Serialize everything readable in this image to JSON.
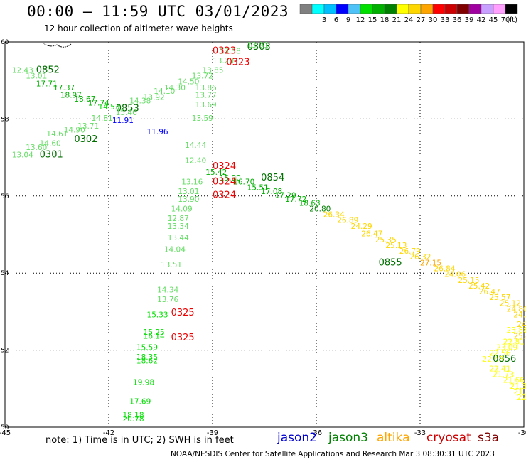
{
  "header": {
    "title": "00:00 – 11:59 UTC 03/01/2023",
    "subtitle": "12 hour collection of altimeter wave heights"
  },
  "legend": {
    "unit": "(ft)",
    "bins": [
      {
        "label": "",
        "color": "#808080"
      },
      {
        "label": "3",
        "color": "#00ffff"
      },
      {
        "label": "6",
        "color": "#00bfff"
      },
      {
        "label": "9",
        "color": "#0000ff"
      },
      {
        "label": "12",
        "color": "#4fc3f7"
      },
      {
        "label": "15",
        "color": "#00e000"
      },
      {
        "label": "18",
        "color": "#00b000"
      },
      {
        "label": "21",
        "color": "#008000"
      },
      {
        "label": "24",
        "color": "#ffff00"
      },
      {
        "label": "27",
        "color": "#ffd700"
      },
      {
        "label": "30",
        "color": "#ffa500"
      },
      {
        "label": "33",
        "color": "#ff0000"
      },
      {
        "label": "36",
        "color": "#cc0000"
      },
      {
        "label": "39",
        "color": "#800000"
      },
      {
        "label": "42",
        "color": "#a000a0"
      },
      {
        "label": "45",
        "color": "#c8a0ff"
      },
      {
        "label": "70",
        "color": "#ffa0ff"
      },
      {
        "label": "",
        "color": "#000000"
      }
    ]
  },
  "axes": {
    "lon_ticks": [
      "-45",
      "-42",
      "-39",
      "-36",
      "-33",
      "-30"
    ],
    "lat_ticks": [
      "50",
      "52",
      "54",
      "56",
      "58",
      "60"
    ]
  },
  "tracks": [
    {
      "color": "#00c000",
      "times": [
        {
          "label": "0852",
          "lon": -44.1,
          "lat": 59.2
        },
        {
          "label": "0853",
          "lon": -41.8,
          "lat": 58.2
        },
        {
          "label": "0854",
          "lon": -37.6,
          "lat": 56.4
        },
        {
          "label": "0855",
          "lon": -34.2,
          "lat": 54.2
        },
        {
          "label": "0856",
          "lon": -30.9,
          "lat": 51.7
        }
      ],
      "values": [
        {
          "v": "12.43",
          "lon": -44.8,
          "lat": 59.2,
          "c": "#66dd66"
        },
        {
          "v": "13.01",
          "lon": -44.4,
          "lat": 59.05,
          "c": "#66dd66"
        },
        {
          "v": "17.71",
          "lon": -44.1,
          "lat": 58.85,
          "c": "#00b000"
        },
        {
          "v": "17.37",
          "lon": -43.6,
          "lat": 58.75,
          "c": "#00b000"
        },
        {
          "v": "18.97",
          "lon": -43.4,
          "lat": 58.55,
          "c": "#00b000"
        },
        {
          "v": "18.67",
          "lon": -43.0,
          "lat": 58.45,
          "c": "#00b000"
        },
        {
          "v": "17.74",
          "lon": -42.6,
          "lat": 58.35,
          "c": "#00b000"
        },
        {
          "v": "14.53",
          "lon": -42.3,
          "lat": 58.25,
          "c": "#00e000"
        },
        {
          "v": "11.91",
          "lon": -41.9,
          "lat": 57.9,
          "c": "#0000ff"
        },
        {
          "v": "11.96",
          "lon": -40.9,
          "lat": 57.6,
          "c": "#0000ff"
        },
        {
          "v": "15.42",
          "lon": -39.2,
          "lat": 56.55,
          "c": "#00b000"
        },
        {
          "v": "15.90",
          "lon": -38.8,
          "lat": 56.4,
          "c": "#00b000"
        },
        {
          "v": "16.70",
          "lon": -38.4,
          "lat": 56.3,
          "c": "#00b000"
        },
        {
          "v": "15.51",
          "lon": -38.0,
          "lat": 56.15,
          "c": "#00b000"
        },
        {
          "v": "17.08",
          "lon": -37.6,
          "lat": 56.05,
          "c": "#00b000"
        },
        {
          "v": "17.29",
          "lon": -37.2,
          "lat": 55.95,
          "c": "#00b000"
        },
        {
          "v": "17.72",
          "lon": -36.9,
          "lat": 55.85,
          "c": "#00b000"
        },
        {
          "v": "18.63",
          "lon": -36.5,
          "lat": 55.75,
          "c": "#00b000"
        },
        {
          "v": "20.80",
          "lon": -36.2,
          "lat": 55.6,
          "c": "#008000"
        },
        {
          "v": "26.34",
          "lon": -35.8,
          "lat": 55.45,
          "c": "#ffd700"
        },
        {
          "v": "26.89",
          "lon": -35.4,
          "lat": 55.3,
          "c": "#ffd700"
        },
        {
          "v": "24.29",
          "lon": -35.0,
          "lat": 55.15,
          "c": "#ffd700"
        },
        {
          "v": "26.47",
          "lon": -34.7,
          "lat": 54.95,
          "c": "#ffd700"
        },
        {
          "v": "25.35",
          "lon": -34.3,
          "lat": 54.8,
          "c": "#ffd700"
        },
        {
          "v": "25.13",
          "lon": -34.0,
          "lat": 54.65,
          "c": "#ffd700"
        },
        {
          "v": "26.79",
          "lon": -33.6,
          "lat": 54.5,
          "c": "#ffd700"
        },
        {
          "v": "26.32",
          "lon": -33.3,
          "lat": 54.35,
          "c": "#ffd700"
        },
        {
          "v": "27.15",
          "lon": -33.0,
          "lat": 54.2,
          "c": "#ffa500"
        },
        {
          "v": "26.84",
          "lon": -32.6,
          "lat": 54.05,
          "c": "#ffd700"
        },
        {
          "v": "24.06",
          "lon": -32.3,
          "lat": 53.9,
          "c": "#ffd700"
        },
        {
          "v": "25.15",
          "lon": -31.9,
          "lat": 53.75,
          "c": "#ffd700"
        },
        {
          "v": "25.42",
          "lon": -31.6,
          "lat": 53.6,
          "c": "#ffd700"
        },
        {
          "v": "26.47",
          "lon": -31.3,
          "lat": 53.45,
          "c": "#ffd700"
        },
        {
          "v": "25.57",
          "lon": -31.0,
          "lat": 53.3,
          "c": "#ffd700"
        },
        {
          "v": "25.12",
          "lon": -30.7,
          "lat": 53.15,
          "c": "#ffd700"
        },
        {
          "v": "24.80",
          "lon": -30.5,
          "lat": 53.0,
          "c": "#ffd700"
        },
        {
          "v": "24.55",
          "lon": -30.3,
          "lat": 52.85,
          "c": "#ffd700"
        },
        {
          "v": "24.77",
          "lon": -30.2,
          "lat": 52.6,
          "c": "#ffd700"
        },
        {
          "v": "23.88",
          "lon": -30.5,
          "lat": 52.45,
          "c": "#ffff00"
        },
        {
          "v": "25.41",
          "lon": -30.3,
          "lat": 52.3,
          "c": "#ffd700"
        },
        {
          "v": "22.81",
          "lon": -30.6,
          "lat": 52.15,
          "c": "#ffff00"
        },
        {
          "v": "23.09",
          "lon": -30.8,
          "lat": 52.0,
          "c": "#ffff00"
        },
        {
          "v": "22.56",
          "lon": -31.0,
          "lat": 51.85,
          "c": "#ffff00"
        },
        {
          "v": "22.43",
          "lon": -31.2,
          "lat": 51.7,
          "c": "#ffff00"
        },
        {
          "v": "22.41",
          "lon": -31.0,
          "lat": 51.45,
          "c": "#ffff00"
        },
        {
          "v": "21.73",
          "lon": -30.9,
          "lat": 51.3,
          "c": "#ffff00"
        },
        {
          "v": "21.66",
          "lon": -30.6,
          "lat": 51.15,
          "c": "#ffff00"
        },
        {
          "v": "21.37",
          "lon": -30.4,
          "lat": 51.0,
          "c": "#ffff00"
        },
        {
          "v": "21.85",
          "lon": -30.3,
          "lat": 50.85,
          "c": "#ffff00"
        },
        {
          "v": "22.09",
          "lon": -30.2,
          "lat": 50.7,
          "c": "#ffff00"
        }
      ]
    },
    {
      "color": "#00c000",
      "times": [
        {
          "label": "0301",
          "lon": -44.0,
          "lat": 57.0
        },
        {
          "label": "0302",
          "lon": -43.0,
          "lat": 57.4
        },
        {
          "label": "0303",
          "lon": -38.0,
          "lat": 59.8
        }
      ],
      "values": [
        {
          "v": "13.04",
          "lon": -44.8,
          "lat": 57.0,
          "c": "#66dd66"
        },
        {
          "v": "13.60",
          "lon": -44.4,
          "lat": 57.2,
          "c": "#66dd66"
        },
        {
          "v": "14.60",
          "lon": -44.0,
          "lat": 57.3,
          "c": "#66dd66"
        },
        {
          "v": "14.61",
          "lon": -43.8,
          "lat": 57.55,
          "c": "#66dd66"
        },
        {
          "v": "14.90",
          "lon": -43.3,
          "lat": 57.65,
          "c": "#66dd66"
        },
        {
          "v": "13.71",
          "lon": -42.9,
          "lat": 57.75,
          "c": "#66dd66"
        },
        {
          "v": "14.81",
          "lon": -42.5,
          "lat": 57.95,
          "c": "#66dd66"
        },
        {
          "v": "15.46",
          "lon": -41.8,
          "lat": 58.1,
          "c": "#66dd66"
        },
        {
          "v": "14.38",
          "lon": -41.4,
          "lat": 58.4,
          "c": "#66dd66"
        },
        {
          "v": "13.92",
          "lon": -41.0,
          "lat": 58.5,
          "c": "#66dd66"
        },
        {
          "v": "14.10",
          "lon": -40.7,
          "lat": 58.65,
          "c": "#66dd66"
        },
        {
          "v": "14.30",
          "lon": -40.4,
          "lat": 58.75,
          "c": "#66dd66"
        },
        {
          "v": "14.50",
          "lon": -40.0,
          "lat": 58.9,
          "c": "#66dd66"
        },
        {
          "v": "13.72",
          "lon": -39.6,
          "lat": 59.05,
          "c": "#66dd66"
        },
        {
          "v": "13.85",
          "lon": -39.3,
          "lat": 59.2,
          "c": "#66dd66"
        },
        {
          "v": "13.20",
          "lon": -39.0,
          "lat": 59.45,
          "c": "#66dd66"
        },
        {
          "v": "13.38",
          "lon": -38.8,
          "lat": 59.7,
          "c": "#66dd66"
        },
        {
          "v": "13.91",
          "lon": -38.0,
          "lat": 59.85,
          "c": "#66dd66"
        }
      ]
    },
    {
      "color": "#ff0000",
      "times": [
        {
          "label": "0323",
          "lon": -38.6,
          "lat": 59.4
        },
        {
          "label": "0324",
          "lon": -39.0,
          "lat": 56.7
        },
        {
          "label": "0325",
          "lon": -40.2,
          "lat": 52.9
        }
      ],
      "values": [
        {
          "v": "13.86",
          "lon": -39.5,
          "lat": 58.75,
          "c": "#66dd66"
        },
        {
          "v": "13.77",
          "lon": -39.5,
          "lat": 58.55,
          "c": "#66dd66"
        },
        {
          "v": "13.69",
          "lon": -39.5,
          "lat": 58.3,
          "c": "#66dd66"
        },
        {
          "v": "13.59",
          "lon": -39.6,
          "lat": 57.95,
          "c": "#66dd66"
        },
        {
          "v": "14.44",
          "lon": -39.8,
          "lat": 57.25,
          "c": "#66dd66"
        },
        {
          "v": "12.40",
          "lon": -39.8,
          "lat": 56.85,
          "c": "#66dd66"
        },
        {
          "v": "13.16",
          "lon": -39.9,
          "lat": 56.3,
          "c": "#66dd66"
        },
        {
          "v": "13.01",
          "lon": -40.0,
          "lat": 56.05,
          "c": "#66dd66"
        },
        {
          "v": "13.90",
          "lon": -40.0,
          "lat": 55.85,
          "c": "#66dd66"
        },
        {
          "v": "14.09",
          "lon": -40.2,
          "lat": 55.6,
          "c": "#66dd66"
        },
        {
          "v": "12.87",
          "lon": -40.3,
          "lat": 55.35,
          "c": "#66dd66"
        },
        {
          "v": "13.34",
          "lon": -40.3,
          "lat": 55.15,
          "c": "#66dd66"
        },
        {
          "v": "13.44",
          "lon": -40.3,
          "lat": 54.85,
          "c": "#66dd66"
        },
        {
          "v": "14.04",
          "lon": -40.4,
          "lat": 54.55,
          "c": "#66dd66"
        },
        {
          "v": "13.51",
          "lon": -40.5,
          "lat": 54.15,
          "c": "#66dd66"
        },
        {
          "v": "14.34",
          "lon": -40.6,
          "lat": 53.5,
          "c": "#66dd66"
        },
        {
          "v": "13.76",
          "lon": -40.6,
          "lat": 53.25,
          "c": "#66dd66"
        },
        {
          "v": "15.33",
          "lon": -40.9,
          "lat": 52.85,
          "c": "#00e000"
        },
        {
          "v": "15.25",
          "lon": -41.0,
          "lat": 52.4,
          "c": "#00e000"
        },
        {
          "v": "16.14",
          "lon": -41.0,
          "lat": 52.3,
          "c": "#00e000"
        },
        {
          "v": "15.59",
          "lon": -41.2,
          "lat": 52.0,
          "c": "#00e000"
        },
        {
          "v": "18.35",
          "lon": -41.2,
          "lat": 51.75,
          "c": "#00e000"
        },
        {
          "v": "18.62",
          "lon": -41.2,
          "lat": 51.65,
          "c": "#00e000"
        },
        {
          "v": "19.98",
          "lon": -41.3,
          "lat": 51.1,
          "c": "#00e000"
        },
        {
          "v": "17.69",
          "lon": -41.4,
          "lat": 50.6,
          "c": "#00e000"
        },
        {
          "v": "18.18",
          "lon": -41.6,
          "lat": 50.25,
          "c": "#00e000"
        },
        {
          "v": "20.78",
          "lon": -41.6,
          "lat": 50.15,
          "c": "#00e000"
        }
      ]
    }
  ],
  "red_times_extra": [
    {
      "label": "0324",
      "lon": -39.0,
      "lat": 56.3
    },
    {
      "label": "0324",
      "lon": -39.0,
      "lat": 55.95
    },
    {
      "label": "0325",
      "lon": -40.2,
      "lat": 52.25
    },
    {
      "label": "0323",
      "lon": -39.0,
      "lat": 59.7
    }
  ],
  "footer": {
    "note": "note:  1) Time is in UTC;  2) SWH is in feet",
    "credit": "NOAA/NESDIS Center for Satellite Applications and Research    Mar  3 08:30:31 UTC 2023",
    "satellites": [
      {
        "name": "jason2",
        "color": "#0000cc"
      },
      {
        "name": "jason3",
        "color": "#008000"
      },
      {
        "name": "altika",
        "color": "#ffa500"
      },
      {
        "name": "cryosat",
        "color": "#cc0000"
      },
      {
        "name": "s3a",
        "color": "#800000"
      }
    ]
  }
}
